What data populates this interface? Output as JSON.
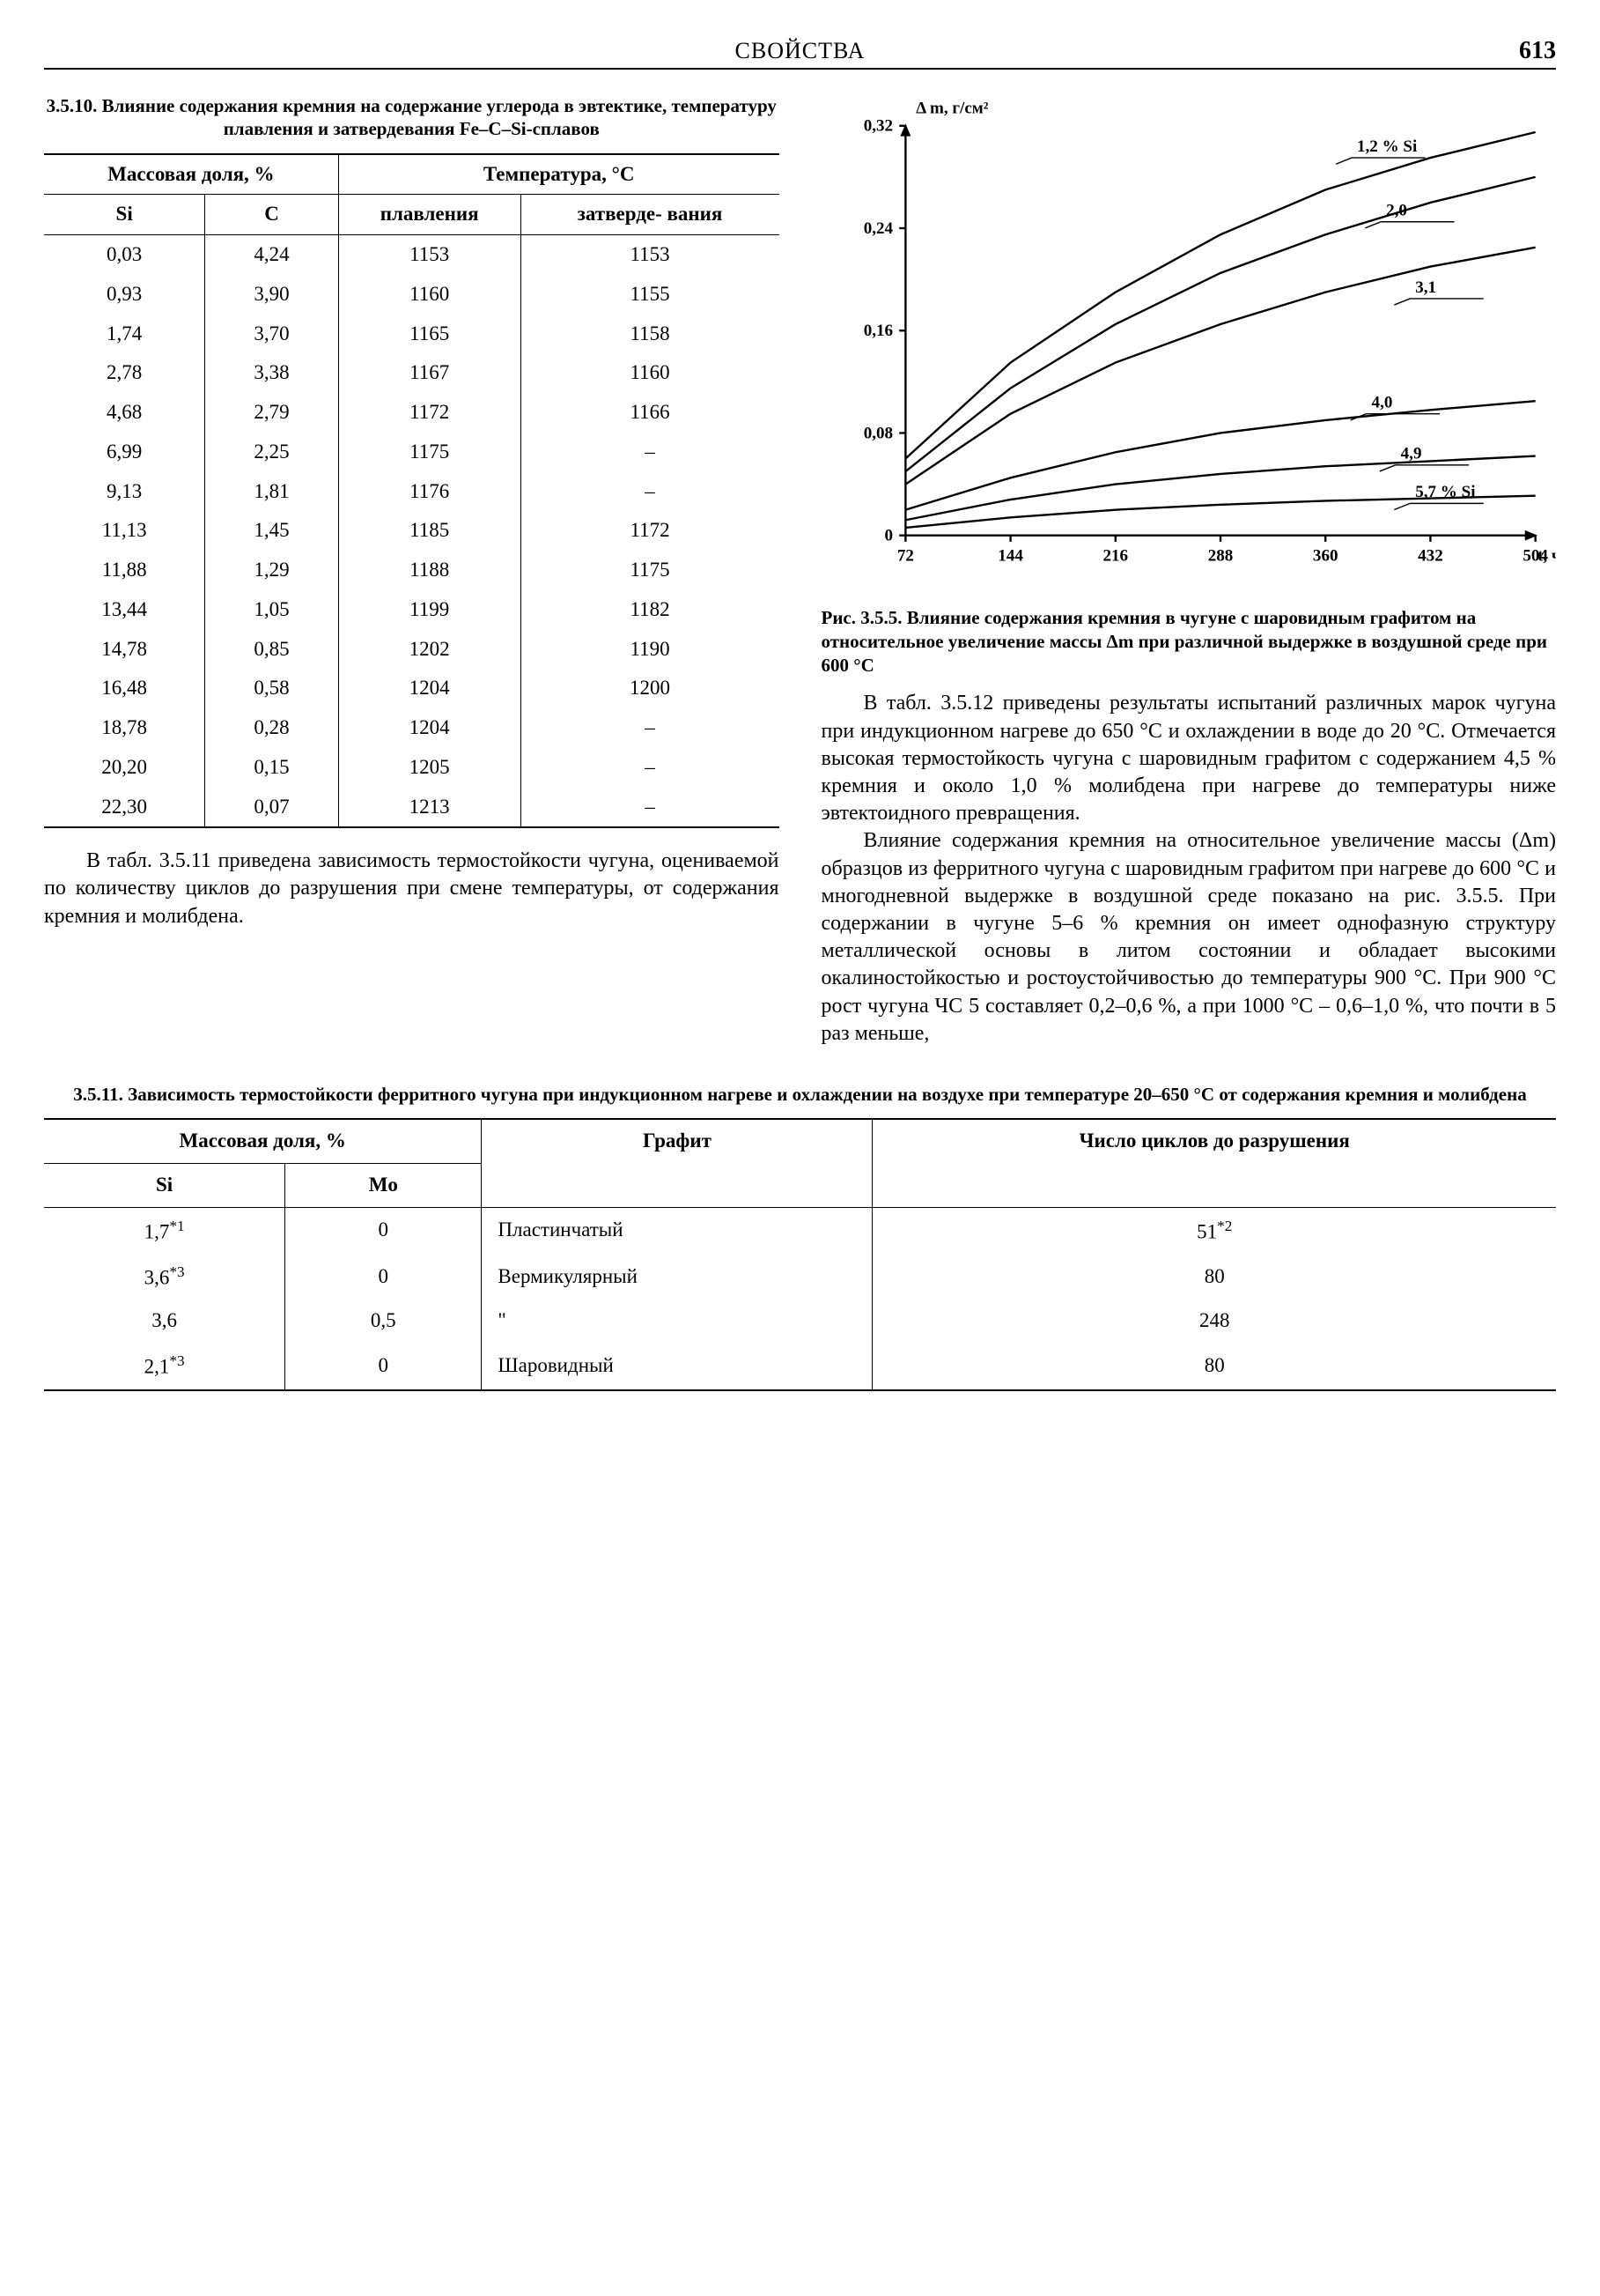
{
  "header": {
    "title": "СВОЙСТВА",
    "page": "613"
  },
  "table1": {
    "caption": "3.5.10. Влияние содержания кремния на содержание углерода в эвтектике, температуру плавления и затвердевания Fe–C–Si-сплавов",
    "header": {
      "mass_fraction": "Массовая доля, %",
      "temperature": "Температура, °C",
      "si": "Si",
      "c": "C",
      "melting": "плавления",
      "solidification": "затверде-\nвания"
    },
    "rows": [
      {
        "si": "0,03",
        "c": "4,24",
        "melt": "1153",
        "sol": "1153"
      },
      {
        "si": "0,93",
        "c": "3,90",
        "melt": "1160",
        "sol": "1155"
      },
      {
        "si": "1,74",
        "c": "3,70",
        "melt": "1165",
        "sol": "1158"
      },
      {
        "si": "2,78",
        "c": "3,38",
        "melt": "1167",
        "sol": "1160"
      },
      {
        "si": "4,68",
        "c": "2,79",
        "melt": "1172",
        "sol": "1166"
      },
      {
        "si": "6,99",
        "c": "2,25",
        "melt": "1175",
        "sol": "–"
      },
      {
        "si": "9,13",
        "c": "1,81",
        "melt": "1176",
        "sol": "–"
      },
      {
        "si": "11,13",
        "c": "1,45",
        "melt": "1185",
        "sol": "1172"
      },
      {
        "si": "11,88",
        "c": "1,29",
        "melt": "1188",
        "sol": "1175"
      },
      {
        "si": "13,44",
        "c": "1,05",
        "melt": "1199",
        "sol": "1182"
      },
      {
        "si": "14,78",
        "c": "0,85",
        "melt": "1202",
        "sol": "1190"
      },
      {
        "si": "16,48",
        "c": "0,58",
        "melt": "1204",
        "sol": "1200"
      },
      {
        "si": "18,78",
        "c": "0,28",
        "melt": "1204",
        "sol": "–"
      },
      {
        "si": "20,20",
        "c": "0,15",
        "melt": "1205",
        "sol": "–"
      },
      {
        "si": "22,30",
        "c": "0,07",
        "melt": "1213",
        "sol": "–"
      }
    ]
  },
  "chart": {
    "caption": "Рис. 3.5.5. Влияние содержания кремния в чугуне с шаровидным графитом на относительное увеличение массы Δm при различной выдержке в воздушной среде при 600 °C",
    "ylabel": "Δ m, г/см²",
    "xlabel": "t, ч",
    "xticks": [
      72,
      144,
      216,
      288,
      360,
      432,
      504
    ],
    "yticks": [
      0,
      0.08,
      0.16,
      0.24,
      0.32
    ],
    "ytick_labels": [
      "0",
      "0,08",
      "0,16",
      "0,24",
      "0,32"
    ],
    "xlim": [
      72,
      504
    ],
    "ylim": [
      0,
      0.32
    ],
    "line_color": "#000000",
    "axis_color": "#000000",
    "background": "#ffffff",
    "font_size_axis": 16,
    "font_size_label": 16,
    "line_width": 2,
    "series": [
      {
        "label": "1,2 % Si",
        "label_x": 360,
        "label_y": 0.295,
        "points": [
          [
            72,
            0.06
          ],
          [
            144,
            0.135
          ],
          [
            216,
            0.19
          ],
          [
            288,
            0.235
          ],
          [
            360,
            0.27
          ],
          [
            432,
            0.295
          ],
          [
            504,
            0.315
          ]
        ]
      },
      {
        "label": "2,0",
        "label_x": 380,
        "label_y": 0.245,
        "points": [
          [
            72,
            0.05
          ],
          [
            144,
            0.115
          ],
          [
            216,
            0.165
          ],
          [
            288,
            0.205
          ],
          [
            360,
            0.235
          ],
          [
            432,
            0.26
          ],
          [
            504,
            0.28
          ]
        ]
      },
      {
        "label": "3,1",
        "label_x": 400,
        "label_y": 0.185,
        "points": [
          [
            72,
            0.04
          ],
          [
            144,
            0.095
          ],
          [
            216,
            0.135
          ],
          [
            288,
            0.165
          ],
          [
            360,
            0.19
          ],
          [
            432,
            0.21
          ],
          [
            504,
            0.225
          ]
        ]
      },
      {
        "label": "4,0",
        "label_x": 370,
        "label_y": 0.095,
        "points": [
          [
            72,
            0.02
          ],
          [
            144,
            0.045
          ],
          [
            216,
            0.065
          ],
          [
            288,
            0.08
          ],
          [
            360,
            0.09
          ],
          [
            432,
            0.098
          ],
          [
            504,
            0.105
          ]
        ]
      },
      {
        "label": "4,9",
        "label_x": 390,
        "label_y": 0.055,
        "points": [
          [
            72,
            0.012
          ],
          [
            144,
            0.028
          ],
          [
            216,
            0.04
          ],
          [
            288,
            0.048
          ],
          [
            360,
            0.054
          ],
          [
            432,
            0.058
          ],
          [
            504,
            0.062
          ]
        ]
      },
      {
        "label": "5,7 % Si",
        "label_x": 400,
        "label_y": 0.025,
        "points": [
          [
            72,
            0.006
          ],
          [
            144,
            0.014
          ],
          [
            216,
            0.02
          ],
          [
            288,
            0.024
          ],
          [
            360,
            0.027
          ],
          [
            432,
            0.029
          ],
          [
            504,
            0.031
          ]
        ]
      }
    ]
  },
  "text": {
    "p1": "В табл. 3.5.11 приведена зависимость термостойкости чугуна, оцениваемой по количеству циклов до разрушения при смене температуры, от содержания кремния и молибдена.",
    "p2": "В табл. 3.5.12 приведены результаты испытаний различных марок чугуна при индукционном нагреве до 650 °C и охлаждении в воде до 20 °C. Отмечается высокая термостойкость чугуна с шаровидным графитом с содержанием 4,5 % кремния и около 1,0 % молибдена при нагреве до температуры ниже эвтектоидного превращения.",
    "p3": "Влияние содержания кремния на относительное увеличение массы (Δm) образцов из ферритного чугуна с шаровидным графитом при нагреве до 600 °C и многодневной выдержке в воздушной среде показано на рис. 3.5.5. При содержании в чугуне 5–6 % кремния он имеет однофазную структуру металлической основы в литом состоянии и обладает высокими окалиностойкостью и ростоустойчивостью до температуры 900 °C. При 900 °C рост чугуна ЧС 5 составляет 0,2–0,6 %, а при 1000 °C – 0,6–1,0 %, что почти в 5 раз меньше,"
  },
  "table2": {
    "caption": "3.5.11. Зависимость термостойкости ферритного чугуна при индукционном нагреве и охлаждении на воздухе при температуре 20–650 °C от содержания кремния и молибдена",
    "header": {
      "mass_fraction": "Массовая доля, %",
      "graphite": "Графит",
      "cycles": "Число циклов до разрушения",
      "si": "Si",
      "mo": "Mo"
    },
    "rows": [
      {
        "si": "1,7*1",
        "mo": "0",
        "graphite": "Пластинчатый",
        "cycles": "51*2"
      },
      {
        "si": "3,6*3",
        "mo": "0",
        "graphite": "Вермикулярный",
        "cycles": "80"
      },
      {
        "si": "3,6",
        "mo": "0,5",
        "graphite": "\"",
        "cycles": "248"
      },
      {
        "si": "2,1*3",
        "mo": "0",
        "graphite": "Шаровидный",
        "cycles": "80"
      }
    ]
  }
}
